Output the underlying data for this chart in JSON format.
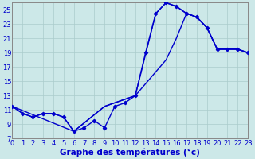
{
  "xlabel": "Graphe des températures (°c)",
  "xlim": [
    0,
    23
  ],
  "ylim": [
    7,
    26
  ],
  "xticks": [
    0,
    1,
    2,
    3,
    4,
    5,
    6,
    7,
    8,
    9,
    10,
    11,
    12,
    13,
    14,
    15,
    16,
    17,
    18,
    19,
    20,
    21,
    22,
    23
  ],
  "yticks": [
    7,
    9,
    11,
    13,
    15,
    17,
    19,
    21,
    23,
    25
  ],
  "bg_color": "#cce8e8",
  "line_color": "#0000cc",
  "grid_color": "#aacccc",
  "tick_fontsize": 6,
  "xlabel_fontsize": 7.5,
  "line1_x": [
    0,
    1,
    2,
    3,
    4,
    5,
    6,
    7,
    8,
    9,
    10,
    11,
    12,
    13,
    14,
    15,
    16,
    17,
    18,
    19,
    20,
    21,
    22,
    23
  ],
  "line1_y": [
    11.5,
    10.5,
    10.0,
    10.5,
    10.5,
    10.0,
    8.0,
    8.5,
    9.5,
    8.5,
    11.5,
    12.0,
    13.0,
    19.0,
    24.5,
    26.0,
    25.5,
    24.5,
    24.0,
    22.5,
    19.5,
    19.5,
    19.5,
    19.0
  ],
  "line2_x": [
    0,
    1,
    2,
    3,
    4,
    5,
    6,
    9,
    12,
    15,
    16,
    17,
    18,
    19,
    20,
    21,
    22,
    23
  ],
  "line2_y": [
    11.5,
    10.5,
    10.0,
    10.5,
    10.5,
    10.0,
    8.0,
    11.5,
    13.0,
    18.0,
    21.0,
    24.5,
    24.0,
    22.5,
    19.5,
    19.5,
    19.5,
    19.0
  ],
  "line3_x": [
    0,
    6,
    9,
    12,
    14,
    15,
    16,
    17,
    18,
    19,
    20,
    21,
    22,
    23
  ],
  "line3_y": [
    11.5,
    8.0,
    11.5,
    13.0,
    24.5,
    26.0,
    25.5,
    24.5,
    24.0,
    22.5,
    19.5,
    19.5,
    19.5,
    19.0
  ]
}
